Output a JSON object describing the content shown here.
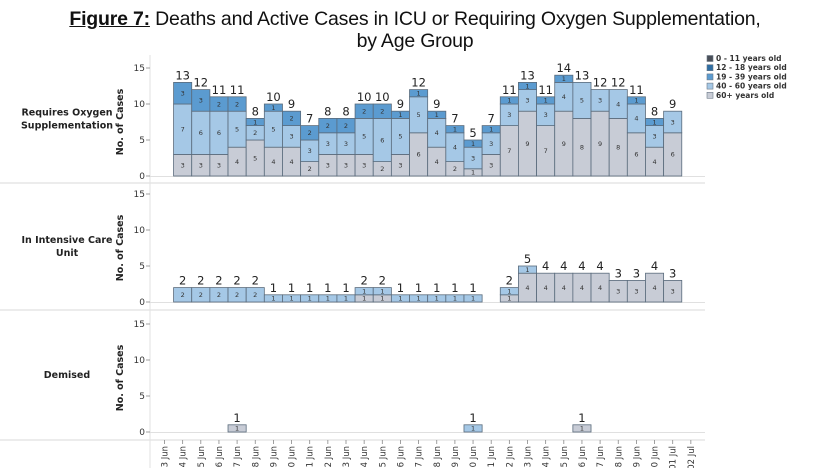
{
  "title": {
    "figure_label": "Figure 7:",
    "text_line1": " Deaths and Active Cases in ICU or Requiring Oxygen Supplementation,",
    "text_line2": "by Age Group"
  },
  "chart_data": {
    "type": "bar",
    "stacked": true,
    "title": "Figure 7: Deaths and Active Cases in ICU or Requiring Oxygen Supplementation, by Age Group",
    "ylabel": "No. of Cases",
    "ylim": [
      0,
      15
    ],
    "yticks": [
      0,
      5,
      10,
      15
    ],
    "x_tick_labels": [
      "3 Jun",
      "4 Jun",
      "5 Jun",
      "6 Jun",
      "7 Jun",
      "8 Jun",
      "9 Jun",
      "0 Jun",
      "1 Jun",
      "2 Jun",
      "3 Jun",
      "4 Jun",
      "5 Jun",
      "6 Jun",
      "7 Jun",
      "8 Jun",
      "9 Jun",
      "0 Jun",
      "1 Jun",
      "2 Jun",
      "3 Jun",
      "4 Jun",
      "5 Jun",
      "6 Jun",
      "7 Jun",
      "8 Jun",
      "9 Jun",
      "0 Jun",
      "01 Jul",
      "02 Jul"
    ],
    "x_dates": [
      "03 Jun",
      "04 Jun",
      "05 Jun",
      "06 Jun",
      "07 Jun",
      "08 Jun",
      "09 Jun",
      "10 Jun",
      "11 Jun",
      "12 Jun",
      "13 Jun",
      "14 Jun",
      "15 Jun",
      "16 Jun",
      "17 Jun",
      "18 Jun",
      "19 Jun",
      "20 Jun",
      "21 Jun",
      "22 Jun",
      "23 Jun",
      "24 Jun",
      "25 Jun",
      "26 Jun",
      "27 Jun",
      "28 Jun",
      "29 Jun",
      "30 Jun",
      "01 Jul",
      "02 Jul"
    ],
    "legend": {
      "placement": "top-right",
      "entries": [
        {
          "name": "0 - 11 years old",
          "color": "#4a4f59"
        },
        {
          "name": "12 - 18 years old",
          "color": "#2f6ea3"
        },
        {
          "name": "19 - 39 years old",
          "color": "#5b9bd0"
        },
        {
          "name": "40 - 60 years old",
          "color": "#a5c8e6"
        },
        {
          "name": "60+ years old",
          "color": "#c8ccd6"
        }
      ]
    },
    "stack_order": [
      "60+ years old",
      "40 - 60 years old",
      "19 - 39 years old",
      "12 - 18 years old",
      "0 - 11 years old"
    ],
    "panels": [
      {
        "name": "Requires Oxygen Supplementation",
        "row_label_lines": [
          "Requires Oxygen",
          "Supplementation"
        ],
        "series": [
          {
            "name": "60+ years old",
            "values": [
              0,
              3,
              3,
              3,
              4,
              5,
              4,
              4,
              2,
              3,
              3,
              3,
              2,
              3,
              6,
              4,
              2,
              1,
              3,
              7,
              9,
              7,
              9,
              8,
              9,
              8,
              6,
              4,
              6,
              0
            ]
          },
          {
            "name": "40 - 60 years old",
            "values": [
              0,
              7,
              6,
              6,
              5,
              2,
              5,
              3,
              3,
              3,
              3,
              5,
              6,
              5,
              5,
              4,
              4,
              3,
              3,
              3,
              3,
              3,
              4,
              5,
              3,
              4,
              4,
              3,
              3,
              0
            ]
          },
          {
            "name": "19 - 39 years old",
            "values": [
              0,
              3,
              3,
              2,
              2,
              1,
              1,
              2,
              2,
              2,
              2,
              2,
              2,
              1,
              1,
              1,
              1,
              1,
              1,
              1,
              1,
              1,
              1,
              0,
              0,
              0,
              1,
              1,
              0,
              0
            ]
          },
          {
            "name": "12 - 18 years old",
            "values": [
              0,
              0,
              0,
              0,
              0,
              0,
              0,
              0,
              0,
              0,
              0,
              0,
              0,
              0,
              0,
              0,
              0,
              0,
              0,
              0,
              0,
              0,
              0,
              0,
              0,
              0,
              0,
              0,
              0,
              0
            ]
          },
          {
            "name": "0 - 11 years old",
            "values": [
              0,
              0,
              0,
              0,
              0,
              0,
              0,
              0,
              0,
              0,
              0,
              0,
              0,
              0,
              0,
              0,
              0,
              0,
              0,
              0,
              0,
              0,
              0,
              0,
              0,
              0,
              0,
              0,
              0,
              0
            ]
          }
        ],
        "totals": [
          null,
          13,
          12,
          11,
          11,
          8,
          10,
          9,
          7,
          8,
          8,
          10,
          10,
          9,
          12,
          9,
          7,
          5,
          7,
          11,
          13,
          11,
          14,
          13,
          12,
          12,
          11,
          8,
          9,
          null
        ]
      },
      {
        "name": "In Intensive Care Unit",
        "row_label_lines": [
          "In Intensive Care",
          "Unit"
        ],
        "series": [
          {
            "name": "60+ years old",
            "values": [
              0,
              0,
              0,
              0,
              0,
              0,
              0,
              0,
              0,
              0,
              0,
              1,
              1,
              0,
              0,
              0,
              0,
              0,
              0,
              1,
              4,
              4,
              4,
              4,
              4,
              3,
              3,
              4,
              3,
              0
            ]
          },
          {
            "name": "40 - 60 years old",
            "values": [
              0,
              2,
              2,
              2,
              2,
              2,
              1,
              1,
              1,
              1,
              1,
              1,
              1,
              1,
              1,
              1,
              1,
              1,
              0,
              1,
              1,
              0,
              0,
              0,
              0,
              0,
              0,
              0,
              0,
              0
            ]
          },
          {
            "name": "19 - 39 years old",
            "values": [
              0,
              0,
              0,
              0,
              0,
              0,
              0,
              0,
              0,
              0,
              0,
              0,
              0,
              0,
              0,
              0,
              0,
              0,
              0,
              0,
              0,
              0,
              0,
              0,
              0,
              0,
              0,
              0,
              0,
              0
            ]
          },
          {
            "name": "12 - 18 years old",
            "values": [
              0,
              0,
              0,
              0,
              0,
              0,
              0,
              0,
              0,
              0,
              0,
              0,
              0,
              0,
              0,
              0,
              0,
              0,
              0,
              0,
              0,
              0,
              0,
              0,
              0,
              0,
              0,
              0,
              0,
              0
            ]
          },
          {
            "name": "0 - 11 years old",
            "values": [
              0,
              0,
              0,
              0,
              0,
              0,
              0,
              0,
              0,
              0,
              0,
              0,
              0,
              0,
              0,
              0,
              0,
              0,
              0,
              0,
              0,
              0,
              0,
              0,
              0,
              0,
              0,
              0,
              0,
              0
            ]
          }
        ],
        "totals": [
          null,
          2,
          2,
          2,
          2,
          2,
          1,
          1,
          1,
          1,
          1,
          2,
          2,
          1,
          1,
          1,
          1,
          1,
          null,
          2,
          5,
          4,
          4,
          4,
          4,
          3,
          3,
          4,
          3,
          null
        ]
      },
      {
        "name": "Demised",
        "row_label_lines": [
          "Demised"
        ],
        "series": [
          {
            "name": "60+ years old",
            "values": [
              0,
              0,
              0,
              0,
              1,
              0,
              0,
              0,
              0,
              0,
              0,
              0,
              0,
              0,
              0,
              0,
              0,
              0,
              0,
              0,
              0,
              0,
              0,
              1,
              0,
              0,
              0,
              0,
              0,
              0
            ]
          },
          {
            "name": "40 - 60 years old",
            "values": [
              0,
              0,
              0,
              0,
              0,
              0,
              0,
              0,
              0,
              0,
              0,
              0,
              0,
              0,
              0,
              0,
              0,
              1,
              0,
              0,
              0,
              0,
              0,
              0,
              0,
              0,
              0,
              0,
              0,
              0
            ]
          },
          {
            "name": "19 - 39 years old",
            "values": [
              0,
              0,
              0,
              0,
              0,
              0,
              0,
              0,
              0,
              0,
              0,
              0,
              0,
              0,
              0,
              0,
              0,
              0,
              0,
              0,
              0,
              0,
              0,
              0,
              0,
              0,
              0,
              0,
              0,
              0
            ]
          },
          {
            "name": "12 - 18 years old",
            "values": [
              0,
              0,
              0,
              0,
              0,
              0,
              0,
              0,
              0,
              0,
              0,
              0,
              0,
              0,
              0,
              0,
              0,
              0,
              0,
              0,
              0,
              0,
              0,
              0,
              0,
              0,
              0,
              0,
              0,
              0
            ]
          },
          {
            "name": "0 - 11 years old",
            "values": [
              0,
              0,
              0,
              0,
              0,
              0,
              0,
              0,
              0,
              0,
              0,
              0,
              0,
              0,
              0,
              0,
              0,
              0,
              0,
              0,
              0,
              0,
              0,
              0,
              0,
              0,
              0,
              0,
              0,
              0
            ]
          }
        ],
        "totals": [
          null,
          null,
          null,
          null,
          1,
          null,
          null,
          null,
          null,
          null,
          null,
          null,
          null,
          null,
          null,
          null,
          null,
          1,
          null,
          null,
          null,
          null,
          null,
          1,
          null,
          null,
          null,
          null,
          null,
          null
        ]
      }
    ],
    "grid": false
  }
}
